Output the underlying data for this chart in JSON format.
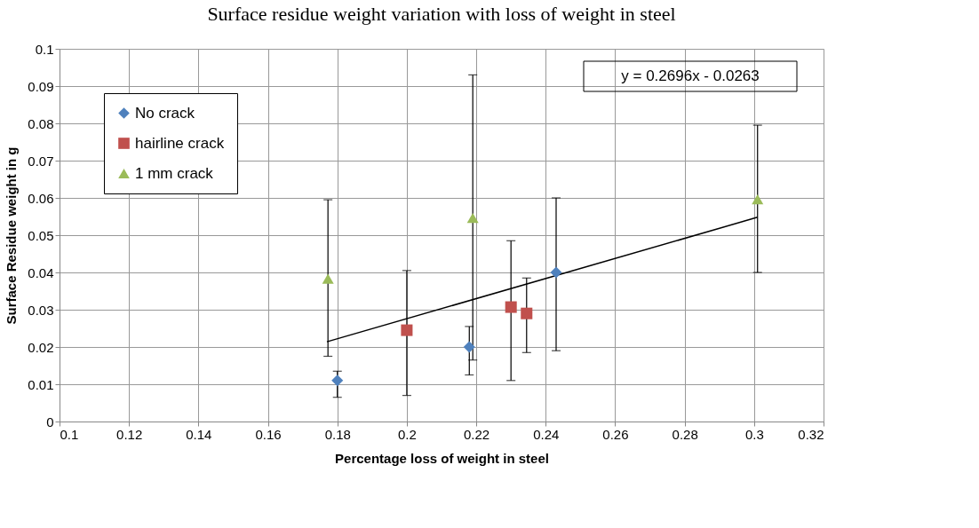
{
  "chart_data": {
    "type": "scatter",
    "title": "Surface residue weight variation with loss of weight in steel",
    "xlabel": "Percentage loss of weight in steel",
    "ylabel": "Surface Residue weight in g",
    "xlim": [
      0.1,
      0.32
    ],
    "xticks": [
      0.1,
      0.12,
      0.14,
      0.16,
      0.18,
      0.2,
      0.22,
      0.24,
      0.26,
      0.28,
      0.3,
      0.32
    ],
    "ylim": [
      0,
      0.1
    ],
    "yticks": [
      0,
      0.01,
      0.02,
      0.03,
      0.04,
      0.05,
      0.06,
      0.07,
      0.08,
      0.09,
      0.1
    ],
    "grid": true,
    "legend": "top left",
    "annotations": [
      "y = 0.2696x - 0.0263"
    ],
    "series": [
      {
        "name": "No crack",
        "color": "#4f81bd",
        "marker": "diamond",
        "x": [
          0.18,
          0.218,
          0.243
        ],
        "values": [
          0.011,
          0.02,
          0.04
        ],
        "errors": [
          [
            0.0065,
            0.0135
          ],
          [
            0.0125,
            0.0255
          ],
          [
            0.019,
            0.06
          ]
        ]
      },
      {
        "name": "hairline crack",
        "color": "#c0504d",
        "marker": "square",
        "x": [
          0.2,
          0.23,
          0.2345
        ],
        "values": [
          0.0245,
          0.0307,
          0.029
        ],
        "errors": [
          [
            0.007,
            0.0405
          ],
          [
            0.011,
            0.0485
          ],
          [
            0.0185,
            0.0385
          ]
        ]
      },
      {
        "name": "1 mm crack",
        "color": "#9bbb59",
        "marker": "triangle",
        "x": [
          0.1773,
          0.219,
          0.301
        ],
        "values": [
          0.0383,
          0.0546,
          0.0596
        ],
        "errors": [
          [
            0.0175,
            0.0595
          ],
          [
            0.0165,
            0.093
          ],
          [
            0.04,
            0.0795
          ]
        ]
      },
      {
        "type": "line",
        "color": "#000000",
        "x": [
          0.177,
          0.301
        ],
        "values": [
          0.0214,
          0.0548
        ]
      }
    ]
  }
}
